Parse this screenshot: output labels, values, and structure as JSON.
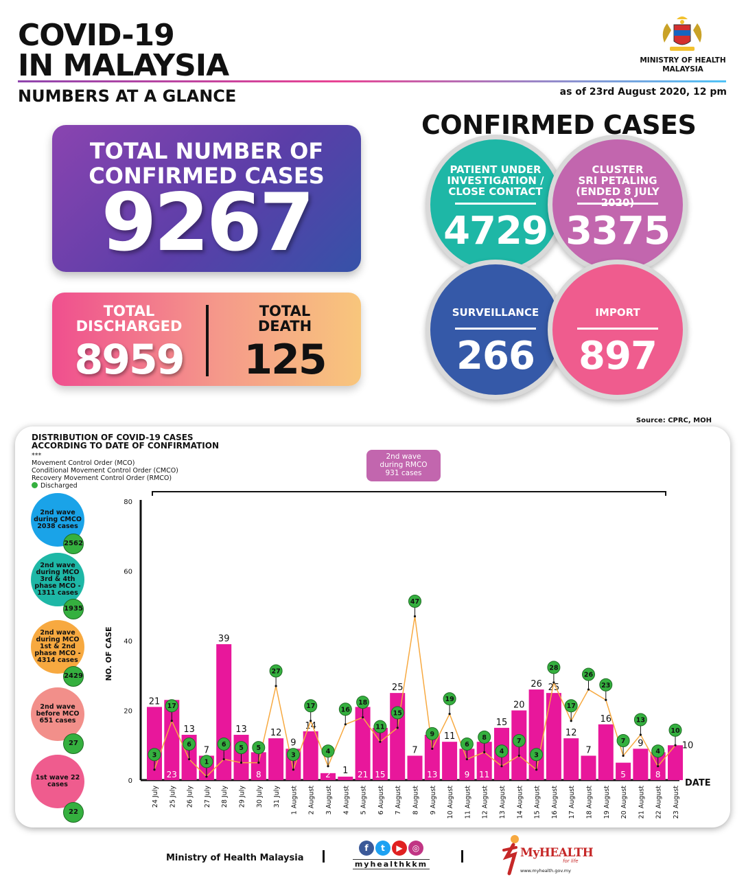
{
  "header": {
    "title_line1": "COVID-19",
    "title_line2": "IN MALAYSIA",
    "subtitle": "NUMBERS AT A GLANCE",
    "as_of": "as of 23rd August 2020, 12 pm",
    "ministry_line1": "MINISTRY OF HEALTH",
    "ministry_line2": "MALAYSIA"
  },
  "total": {
    "label_line1": "TOTAL NUMBER OF",
    "label_line2": "CONFIRMED CASES",
    "value": "9267"
  },
  "discharged": {
    "label_line1": "TOTAL",
    "label_line2": "DISCHARGED",
    "value": "8959"
  },
  "death": {
    "label_line1": "TOTAL",
    "label_line2": "DEATH",
    "value": "125"
  },
  "confirmed": {
    "title": "CONFIRMED CASES",
    "pui": {
      "label_line1": "PATIENT UNDER",
      "label_line2": "INVESTIGATION /",
      "label_line3": "CLOSE CONTACT",
      "value": "4729"
    },
    "cluster": {
      "label_line1": "CLUSTER",
      "label_line2": "SRI PETALING",
      "label_line3": "(ENDED 8 JULY 2020)",
      "value": "3375"
    },
    "surveillance": {
      "label": "SURVEILLANCE",
      "value": "266"
    },
    "import": {
      "label": "IMPORT",
      "value": "897"
    }
  },
  "source": "Source: CPRC, MOH",
  "panel": {
    "title_line1": "DISTRIBUTION OF COVID-19 CASES",
    "title_line2": "ACCORDING TO DATE OF CONFIRMATION",
    "legend_stars": "***",
    "legend_mco": "Movement Control Order (MCO)",
    "legend_cmco": "Conditional Movement Control Order (CMCO)",
    "legend_rmco": "Recovery Movement Control Order (RMCO)",
    "legend_discharged": "Discharged",
    "rmco_box_line1": "2nd wave",
    "rmco_box_line2": "during RMCO",
    "rmco_box_line3": "931 cases"
  },
  "waves": [
    {
      "label": "2nd wave during CMCO 2038 cases",
      "discharged": "2562",
      "color": "#1aa3e8"
    },
    {
      "label": "2nd wave during MCO 3rd & 4th phase MCO - 1311 cases",
      "discharged": "1935",
      "color": "#1eb7a6"
    },
    {
      "label": "2nd wave during MCO 1st & 2nd phase MCO - 4314 cases",
      "discharged": "2429",
      "color": "#f7a940"
    },
    {
      "label": "2nd wave before MCO 651 cases",
      "discharged": "27",
      "color": "#f28f8a"
    },
    {
      "label": "1st wave 22 cases",
      "discharged": "22",
      "color": "#ef5c8e"
    }
  ],
  "chart_data": {
    "type": "bar",
    "categories": [
      "24 July",
      "25 July",
      "26 July",
      "27 July",
      "28 July",
      "29 July",
      "30 July",
      "31 July",
      "1 August",
      "2 August",
      "3 August",
      "4 August",
      "5 August",
      "6 August",
      "7 August",
      "8 August",
      "9 August",
      "10 August",
      "11 August",
      "12 August",
      "13 August",
      "14 August",
      "15 August",
      "16 August",
      "17 August",
      "18 August",
      "19 August",
      "20 August",
      "21 August",
      "22 August",
      "23 August"
    ],
    "series": [
      {
        "values": [
          21,
          23,
          13,
          7,
          39,
          13,
          8,
          12,
          9,
          14,
          2,
          1,
          21,
          15,
          25,
          7,
          13,
          11,
          9,
          11,
          15,
          20,
          26,
          25,
          12,
          7,
          16,
          5,
          9,
          8,
          10
        ]
      },
      {
        "name": "Discharged",
        "values": [
          3,
          17,
          6,
          1,
          6,
          5,
          5,
          27,
          3,
          17,
          4,
          16,
          18,
          11,
          15,
          47,
          9,
          19,
          6,
          8,
          4,
          7,
          3,
          28,
          17,
          26,
          23,
          7,
          13,
          4,
          10
        ]
      }
    ],
    "xlabel": "DATE",
    "ylabel": "NO. OF CASE",
    "ylim": [
      0,
      80
    ],
    "yticks": [
      0,
      20,
      40,
      60,
      80
    ],
    "bar_color": "#e8179b",
    "line_color": "#f7a940",
    "point_color": "#35b03f"
  },
  "footer": {
    "ministry": "Ministry of Health Malaysia",
    "handle": "myhealthkkm",
    "brand": "MyHEALTH",
    "tagline": "for life",
    "url": "www.myhealth.gov.my"
  }
}
